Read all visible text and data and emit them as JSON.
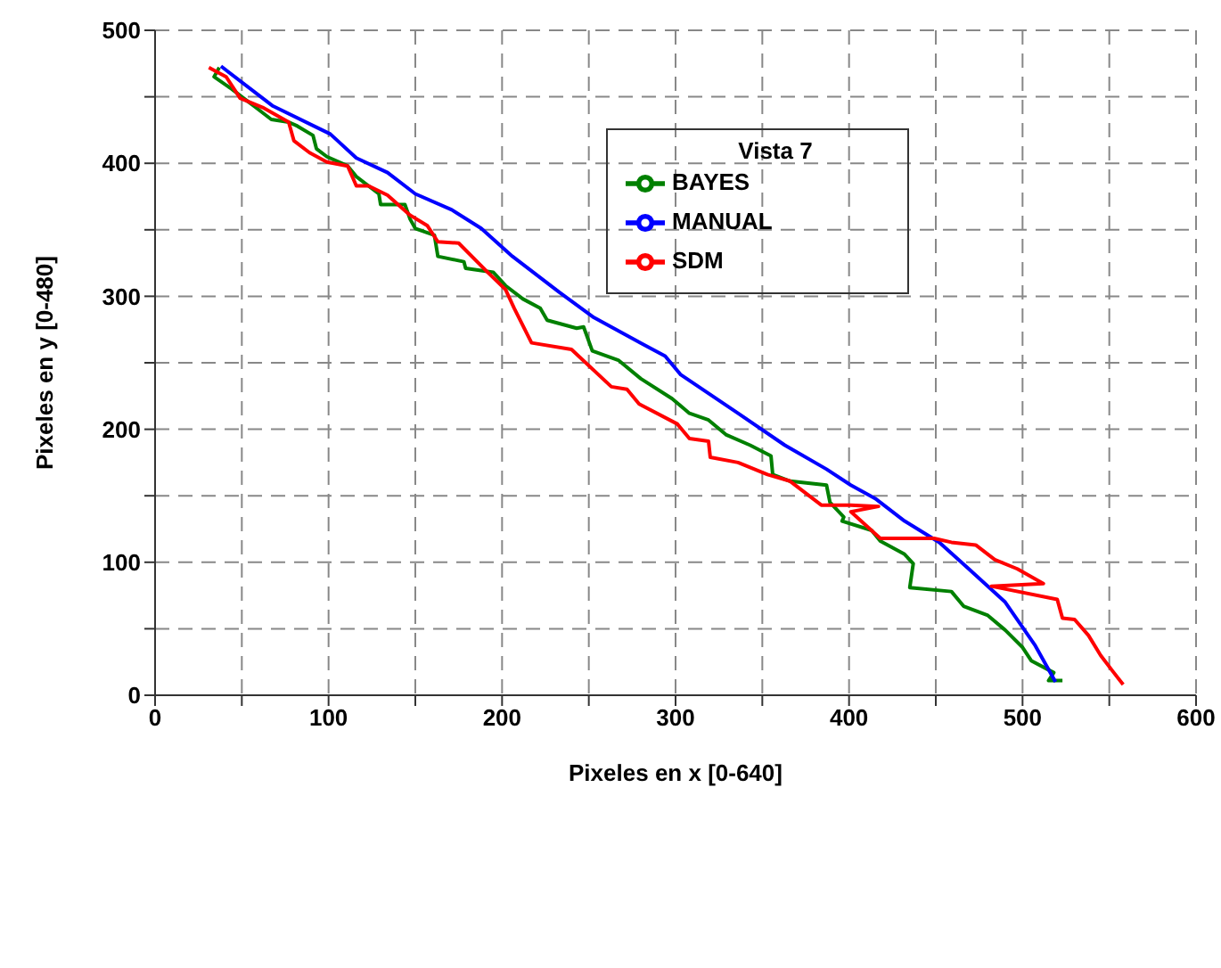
{
  "chart_data": {
    "type": "line",
    "xlabel": "Pixeles en x [0-640]",
    "ylabel": "Pixeles en y [0-480]",
    "legend_title": "Vista 7",
    "legend": "top right",
    "grid": true,
    "marker": "none",
    "line_style": "solid",
    "xlim": [
      0,
      600
    ],
    "xticks": [
      0,
      {
        "value": 50,
        "label": null
      },
      100,
      {
        "value": 150,
        "label": null
      },
      200,
      {
        "value": 250,
        "label": null
      },
      300,
      {
        "value": 350,
        "label": null
      },
      400,
      {
        "value": 450,
        "label": null
      },
      500,
      {
        "value": 550,
        "label": null
      },
      600
    ],
    "ylim": [
      0,
      500
    ],
    "yticks": [
      0,
      {
        "value": 50,
        "label": null
      },
      100,
      {
        "value": 150,
        "label": null
      },
      200,
      {
        "value": 250,
        "label": null
      },
      300,
      {
        "value": 350,
        "label": null
      },
      400,
      {
        "value": 450,
        "label": null
      },
      500
    ],
    "series": [
      {
        "name": "BAYES",
        "color": "#008000",
        "x": [
          37,
          34,
          44,
          51,
          58,
          67,
          77,
          82,
          91,
          93,
          99,
          111,
          116,
          129,
          130,
          144,
          147,
          150,
          161,
          163,
          178,
          179,
          195,
          202,
          212,
          222,
          226,
          243,
          247,
          252,
          267,
          280,
          298,
          308,
          319,
          329,
          343,
          355,
          356,
          366,
          387,
          389,
          397,
          396,
          413,
          418,
          432,
          437,
          435,
          459,
          466,
          480,
          490,
          500,
          505,
          518,
          515,
          523
        ],
        "values": [
          472,
          465,
          456,
          449,
          442,
          433,
          431,
          428,
          421,
          411,
          405,
          398,
          390,
          377,
          369,
          369,
          358,
          351,
          346,
          330,
          326,
          321,
          318,
          308,
          298,
          291,
          282,
          276,
          277,
          259,
          252,
          238,
          223,
          212,
          207,
          196,
          188,
          180,
          166,
          161,
          158,
          145,
          134,
          131,
          124,
          116,
          106,
          99,
          81,
          78,
          67,
          60,
          49,
          36,
          26,
          17,
          11,
          11
        ]
      },
      {
        "name": "MANUAL",
        "color": "#0000ff",
        "x": [
          38,
          68,
          101,
          116,
          134,
          150,
          171,
          188,
          206,
          233,
          253,
          281,
          294,
          303,
          336,
          363,
          387,
          401,
          415,
          432,
          452,
          469,
          490,
          507,
          519
        ],
        "values": [
          473,
          443,
          422,
          404,
          393,
          377,
          365,
          351,
          330,
          303,
          284,
          264,
          255,
          241,
          212,
          188,
          170,
          158,
          148,
          131,
          115,
          95,
          70,
          38,
          10
        ]
      },
      {
        "name": "SDM",
        "color": "#ff0000",
        "x": [
          31,
          41,
          49,
          62,
          77,
          80,
          89,
          99,
          111,
          116,
          123,
          134,
          147,
          157,
          163,
          175,
          191,
          202,
          207,
          217,
          240,
          263,
          272,
          279,
          301,
          308,
          319,
          320,
          336,
          353,
          366,
          384,
          401,
          417,
          401,
          418,
          449,
          459,
          473,
          484,
          497,
          512,
          482,
          520,
          523,
          530,
          538,
          545,
          552,
          558
        ],
        "values": [
          472,
          465,
          449,
          442,
          431,
          417,
          408,
          401,
          398,
          383,
          383,
          376,
          361,
          353,
          341,
          340,
          319,
          305,
          291,
          265,
          260,
          232,
          230,
          219,
          204,
          193,
          191,
          179,
          175,
          166,
          161,
          143,
          143,
          142,
          138,
          118,
          118,
          115,
          113,
          102,
          95,
          84,
          82,
          72,
          58,
          57,
          45,
          30,
          18,
          8
        ]
      }
    ]
  }
}
